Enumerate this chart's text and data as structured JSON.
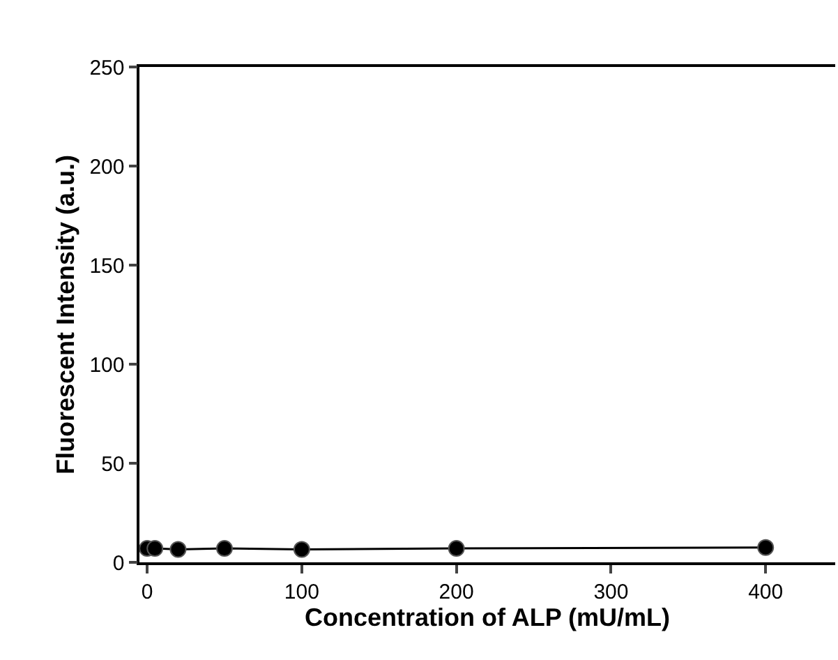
{
  "chart_data": {
    "type": "line",
    "xlabel": "Concentration of ALP (mU/mL)",
    "ylabel": "Fluorescent Intensity (a.u.)",
    "x": [
      0,
      5,
      20,
      50,
      100,
      200,
      400
    ],
    "series": [
      {
        "color": "#000000",
        "values": [
          7,
          7,
          6.5,
          7,
          6.5,
          7,
          7.5
        ]
      }
    ],
    "xlim": [
      -5,
      445
    ],
    "xticks": [
      0,
      100,
      200,
      300,
      400
    ],
    "ylim": [
      0,
      250
    ],
    "yticks": [
      0,
      50,
      100,
      150,
      200,
      250
    ],
    "marker": "circle",
    "line_style": "solid",
    "legend": false
  }
}
